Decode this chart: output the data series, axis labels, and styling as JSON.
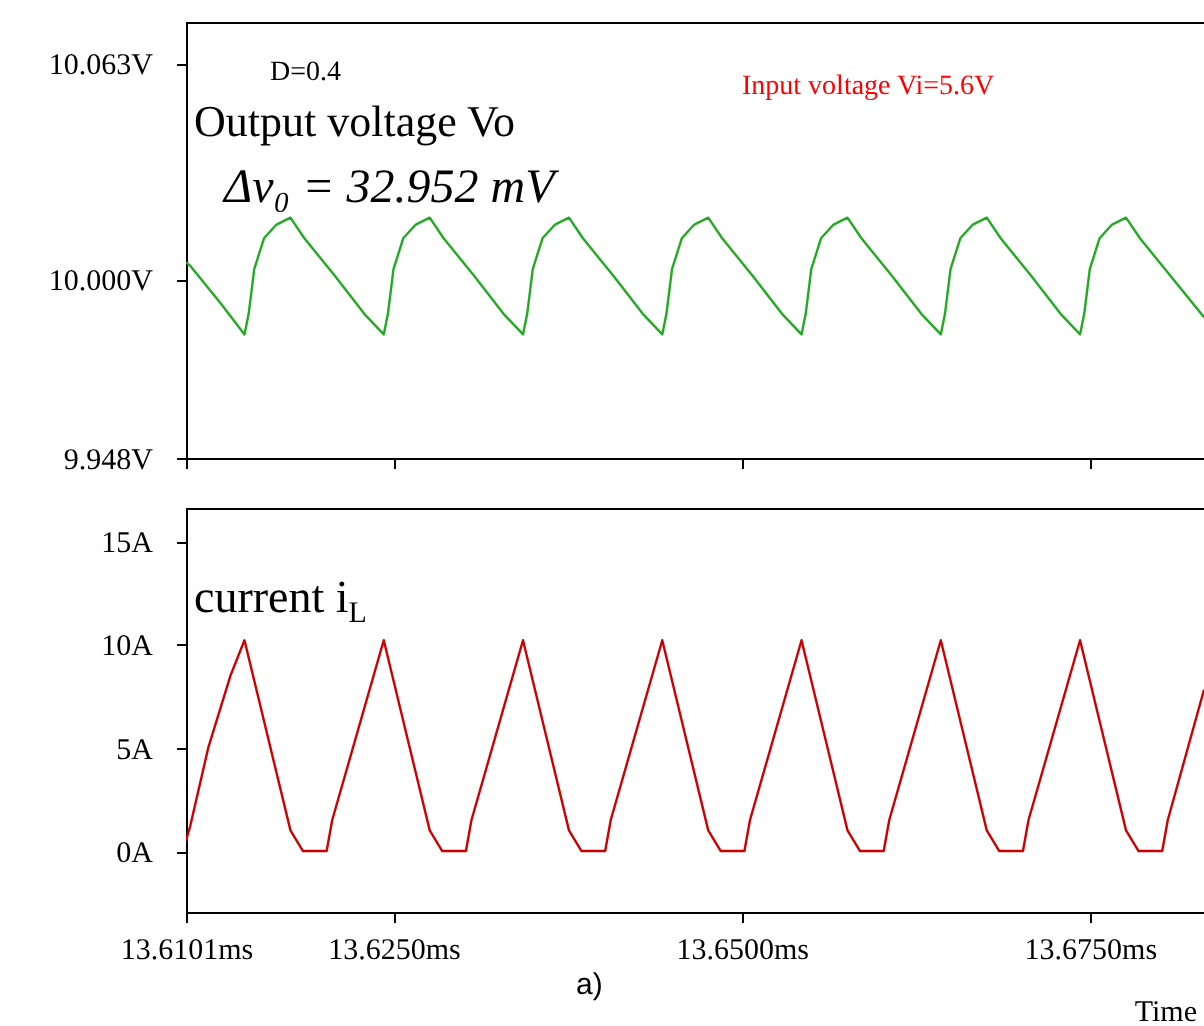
{
  "chart_data": [
    {
      "type": "line",
      "xlim": [
        13.6101,
        13.6832
      ],
      "xticks": [
        {
          "value": 13.6101,
          "label": null
        },
        {
          "value": 13.625,
          "label": null
        },
        {
          "value": 13.65,
          "label": null
        },
        {
          "value": 13.675,
          "label": null
        }
      ],
      "ylim": [
        9.948,
        10.075
      ],
      "yticks": [
        {
          "value": 10.063,
          "label": "10.063V"
        },
        {
          "value": 10.0,
          "label": "10.000V"
        },
        {
          "value": 9.948,
          "label": "9.948V"
        }
      ],
      "tick_labels": "y",
      "grid": false,
      "annotations": [
        "D=0.4",
        "Output voltage Vo",
        "Δv₀ = 32.952 mV",
        "Input voltage Vi=5.6V"
      ],
      "series": [
        {
          "color": "#22aa22",
          "x": [
            13.6101,
            13.6104,
            13.6126,
            13.6143,
            13.6146,
            13.615,
            13.6157,
            13.6166,
            13.6176,
            13.6186,
            13.6208,
            13.6229,
            13.6243,
            13.6246,
            13.625,
            13.6257,
            13.6266,
            13.6276,
            13.6286,
            13.6308,
            13.6329,
            13.6343,
            13.6346,
            13.635,
            13.6357,
            13.6366,
            13.6376,
            13.6386,
            13.6408,
            13.6429,
            13.6443,
            13.6446,
            13.645,
            13.6457,
            13.6466,
            13.6476,
            13.6486,
            13.6508,
            13.6529,
            13.6543,
            13.6546,
            13.655,
            13.6557,
            13.6566,
            13.6576,
            13.6586,
            13.6608,
            13.6629,
            13.6643,
            13.6646,
            13.665,
            13.6657,
            13.6666,
            13.6676,
            13.6686,
            13.6708,
            13.6729,
            13.6743,
            13.6746,
            13.675,
            13.6757,
            13.6766,
            13.6776,
            13.6786,
            13.6808,
            13.6832
          ],
          "values": [
            10.005,
            10.004,
            9.993,
            9.984,
            9.99,
            10.003,
            10.012,
            10.016,
            10.018,
            10.012,
            10.001,
            9.99,
            9.984,
            9.99,
            10.003,
            10.012,
            10.016,
            10.018,
            10.012,
            10.001,
            9.99,
            9.984,
            9.99,
            10.003,
            10.012,
            10.016,
            10.018,
            10.012,
            10.001,
            9.99,
            9.984,
            9.99,
            10.003,
            10.012,
            10.016,
            10.018,
            10.012,
            10.001,
            9.99,
            9.984,
            9.99,
            10.003,
            10.012,
            10.016,
            10.018,
            10.012,
            10.001,
            9.99,
            9.984,
            9.99,
            10.003,
            10.012,
            10.016,
            10.018,
            10.012,
            10.001,
            9.99,
            9.984,
            9.99,
            10.003,
            10.012,
            10.016,
            10.018,
            10.012,
            10.001,
            9.989
          ]
        }
      ]
    },
    {
      "type": "line",
      "xlabel": "Time",
      "xlim": [
        13.6101,
        13.6832
      ],
      "xticks": [
        {
          "value": 13.6101,
          "label": "13.6101ms"
        },
        {
          "value": 13.625,
          "label": "13.6250ms"
        },
        {
          "value": 13.65,
          "label": "13.6500ms"
        },
        {
          "value": 13.675,
          "label": "13.6750ms"
        }
      ],
      "ylim": [
        -2.95,
        16.6
      ],
      "yticks": [
        {
          "value": 0,
          "label": "0A"
        },
        {
          "value": 5,
          "label": "5A"
        },
        {
          "value": 10,
          "label": "10A"
        },
        {
          "value": 15,
          "label": "15A"
        }
      ],
      "grid": false,
      "annotations": [
        "current i$_{L}$",
        "a)"
      ],
      "series": [
        {
          "color": "#cc0000",
          "x": [
            13.6101,
            13.6104,
            13.6117,
            13.6133,
            13.6143,
            13.6176,
            13.6185,
            13.6202,
            13.6206,
            13.6243,
            13.6276,
            13.6285,
            13.6302,
            13.6306,
            13.6343,
            13.6376,
            13.6385,
            13.6402,
            13.6406,
            13.6443,
            13.6476,
            13.6485,
            13.6502,
            13.6506,
            13.6543,
            13.6576,
            13.6585,
            13.6602,
            13.6606,
            13.6643,
            13.6676,
            13.6685,
            13.6702,
            13.6706,
            13.6743,
            13.6776,
            13.6785,
            13.6802,
            13.6806,
            13.6832
          ],
          "values": [
            0.5,
            1.2,
            5,
            8.5,
            10.2,
            1.0,
            0,
            0,
            1.5,
            10.2,
            1.0,
            0,
            0,
            1.5,
            10.2,
            1.0,
            0,
            0,
            1.5,
            10.2,
            1.0,
            0,
            0,
            1.5,
            10.2,
            1.0,
            0,
            0,
            1.5,
            10.2,
            1.0,
            0,
            0,
            1.5,
            10.2,
            1.0,
            0,
            0,
            1.5,
            7.8
          ]
        }
      ]
    }
  ]
}
